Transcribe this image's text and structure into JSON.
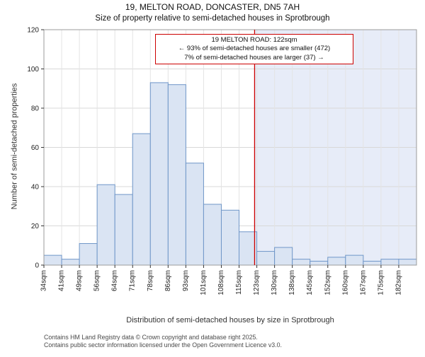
{
  "chart_data": {
    "type": "bar",
    "title": "19, MELTON ROAD, DONCASTER, DN5 7AH",
    "subtitle": "Size of property relative to semi-detached houses in Sprotbrough",
    "categories": [
      "34sqm",
      "41sqm",
      "49sqm",
      "56sqm",
      "64sqm",
      "71sqm",
      "78sqm",
      "86sqm",
      "93sqm",
      "101sqm",
      "108sqm",
      "115sqm",
      "123sqm",
      "130sqm",
      "138sqm",
      "145sqm",
      "152sqm",
      "160sqm",
      "167sqm",
      "175sqm",
      "182sqm"
    ],
    "values": [
      5,
      3,
      11,
      41,
      36,
      67,
      93,
      92,
      52,
      31,
      28,
      17,
      7,
      9,
      3,
      2,
      4,
      5,
      2,
      3,
      3
    ],
    "xlabel": "Distribution of semi-detached houses by size in Sprotbrough",
    "ylabel": "Number of semi-detached properties",
    "ylim": [
      0,
      120
    ],
    "yticks": [
      0,
      20,
      40,
      60,
      80,
      100,
      120
    ],
    "grid": true,
    "legend_position": "none",
    "marker": {
      "value": 122,
      "label": "122sqm"
    },
    "annotation": {
      "lines": [
        "19 MELTON ROAD: 122sqm",
        "← 93% of semi-detached houses are smaller (472)",
        "7% of semi-detached houses are larger (37) →"
      ]
    },
    "colors": {
      "bar_fill": "#dae4f3",
      "bar_stroke": "#6f96c8",
      "marker": "#cc0000",
      "shade": "rgba(120,152,214,0.18)",
      "grid": "#d8d8d8",
      "grid_v": "#e4e4e4",
      "axis_border": "#9b9b9b"
    }
  },
  "footer": {
    "line1": "Contains HM Land Registry data © Crown copyright and database right 2025.",
    "line2": "Contains public sector information licensed under the Open Government Licence v3.0."
  }
}
